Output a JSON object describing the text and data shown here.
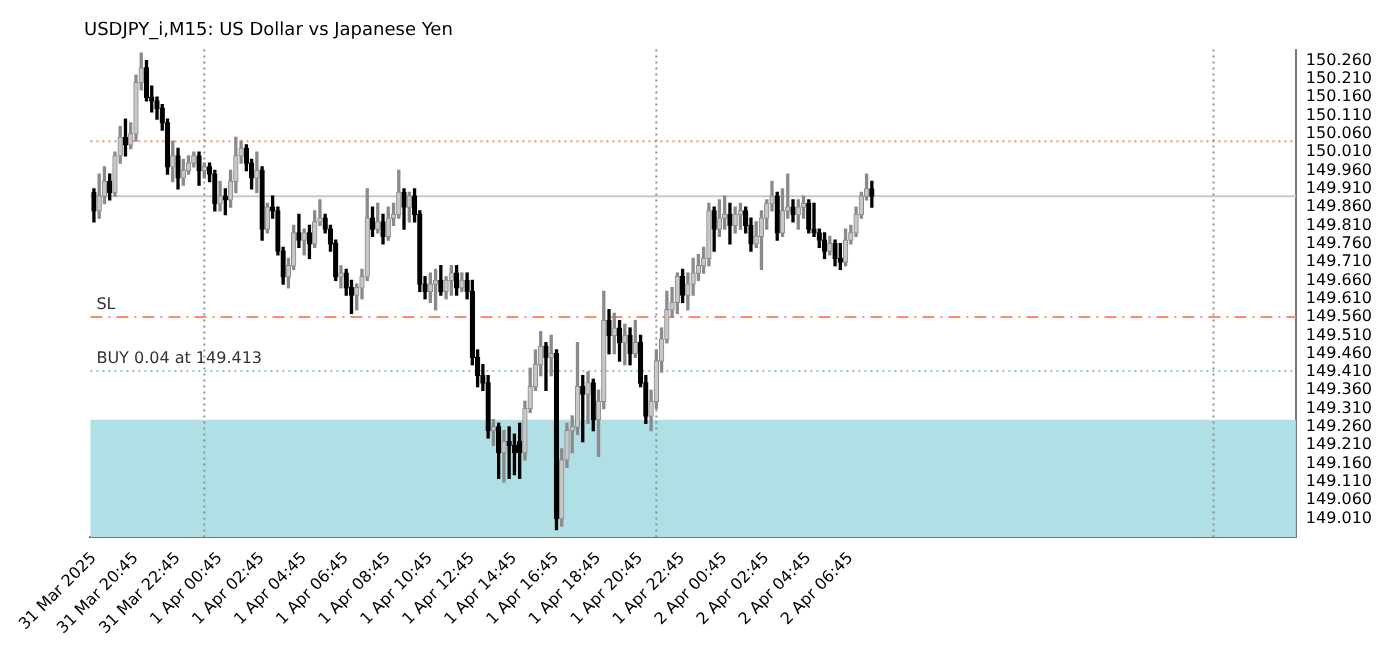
{
  "chart_data": {
    "type": "candlestick",
    "title": "USDJPY_i,M15: US Dollar vs Japanese Yen",
    "x": [
      "2025-03-31T18:45",
      "2025-03-31T19:00",
      "2025-03-31T19:15",
      "2025-03-31T19:30",
      "2025-03-31T19:45",
      "2025-03-31T20:00",
      "2025-03-31T20:15",
      "2025-03-31T20:30",
      "2025-03-31T20:45",
      "2025-03-31T21:00",
      "2025-03-31T21:15",
      "2025-03-31T21:30",
      "2025-03-31T21:45",
      "2025-03-31T22:00",
      "2025-03-31T22:15",
      "2025-03-31T22:30",
      "2025-03-31T22:45",
      "2025-03-31T23:00",
      "2025-03-31T23:15",
      "2025-03-31T23:30",
      "2025-03-31T23:45",
      "2025-04-01T00:00",
      "2025-04-01T00:15",
      "2025-04-01T00:30",
      "2025-04-01T00:45",
      "2025-04-01T01:00",
      "2025-04-01T01:15",
      "2025-04-01T01:30",
      "2025-04-01T01:45",
      "2025-04-01T02:00",
      "2025-04-01T02:15",
      "2025-04-01T02:30",
      "2025-04-01T02:45",
      "2025-04-01T03:00",
      "2025-04-01T03:15",
      "2025-04-01T03:30",
      "2025-04-01T03:45",
      "2025-04-01T04:00",
      "2025-04-01T04:15",
      "2025-04-01T04:30",
      "2025-04-01T04:45",
      "2025-04-01T05:00",
      "2025-04-01T05:15",
      "2025-04-01T05:30",
      "2025-04-01T05:45",
      "2025-04-01T06:00",
      "2025-04-01T06:15",
      "2025-04-01T06:30",
      "2025-04-01T06:45",
      "2025-04-01T07:00",
      "2025-04-01T07:15",
      "2025-04-01T07:30",
      "2025-04-01T07:45",
      "2025-04-01T08:00",
      "2025-04-01T08:15",
      "2025-04-01T08:30",
      "2025-04-01T08:45",
      "2025-04-01T09:00",
      "2025-04-01T09:15",
      "2025-04-01T09:30",
      "2025-04-01T09:45",
      "2025-04-01T10:00",
      "2025-04-01T10:15",
      "2025-04-01T10:30",
      "2025-04-01T10:45",
      "2025-04-01T11:00",
      "2025-04-01T11:15",
      "2025-04-01T11:30",
      "2025-04-01T11:45",
      "2025-04-01T12:00",
      "2025-04-01T12:15",
      "2025-04-01T12:30",
      "2025-04-01T12:45",
      "2025-04-01T13:00",
      "2025-04-01T13:15",
      "2025-04-01T13:30",
      "2025-04-01T13:45",
      "2025-04-01T14:00",
      "2025-04-01T14:15",
      "2025-04-01T14:30",
      "2025-04-01T14:45",
      "2025-04-01T15:00",
      "2025-04-01T15:15",
      "2025-04-01T15:30",
      "2025-04-01T15:45",
      "2025-04-01T16:00",
      "2025-04-01T16:15",
      "2025-04-01T16:30",
      "2025-04-01T16:45",
      "2025-04-01T17:00",
      "2025-04-01T17:15",
      "2025-04-01T17:30",
      "2025-04-01T17:45",
      "2025-04-01T18:00",
      "2025-04-01T18:15",
      "2025-04-01T18:30",
      "2025-04-01T18:45",
      "2025-04-01T19:00",
      "2025-04-01T19:15",
      "2025-04-01T19:30",
      "2025-04-01T19:45",
      "2025-04-01T20:00",
      "2025-04-01T20:15",
      "2025-04-01T20:30",
      "2025-04-01T20:45",
      "2025-04-01T21:00",
      "2025-04-01T21:15",
      "2025-04-01T21:30",
      "2025-04-01T21:45",
      "2025-04-01T22:00",
      "2025-04-01T22:15",
      "2025-04-01T22:30",
      "2025-04-01T22:45",
      "2025-04-01T23:00",
      "2025-04-01T23:15",
      "2025-04-01T23:30",
      "2025-04-01T23:45",
      "2025-04-02T00:00",
      "2025-04-02T00:15",
      "2025-04-02T00:30",
      "2025-04-02T00:45",
      "2025-04-02T01:00",
      "2025-04-02T01:15",
      "2025-04-02T01:30",
      "2025-04-02T01:45",
      "2025-04-02T02:00",
      "2025-04-02T02:15",
      "2025-04-02T02:30",
      "2025-04-02T02:45",
      "2025-04-02T03:00",
      "2025-04-02T03:15",
      "2025-04-02T03:30",
      "2025-04-02T03:45",
      "2025-04-02T04:00",
      "2025-04-02T04:15",
      "2025-04-02T04:30",
      "2025-04-02T04:45",
      "2025-04-02T05:00",
      "2025-04-02T05:15",
      "2025-04-02T05:30",
      "2025-04-02T05:45",
      "2025-04-02T06:00",
      "2025-04-02T06:15",
      "2025-04-02T06:30",
      "2025-04-02T06:45",
      "2025-04-02T07:00",
      "2025-04-02T07:15",
      "2025-04-02T07:30",
      "2025-04-02T07:45"
    ],
    "ohlc": [
      [
        149.9,
        149.91,
        149.82,
        149.85
      ],
      [
        149.85,
        149.95,
        149.83,
        149.89
      ],
      [
        149.89,
        149.97,
        149.87,
        149.93
      ],
      [
        149.93,
        149.95,
        149.88,
        149.9
      ],
      [
        149.9,
        150.01,
        149.89,
        150.0
      ],
      [
        150.0,
        150.08,
        149.98,
        150.05
      ],
      [
        150.05,
        150.1,
        150.0,
        150.03
      ],
      [
        150.03,
        150.09,
        150.02,
        150.06
      ],
      [
        150.06,
        150.22,
        150.04,
        150.2
      ],
      [
        150.2,
        150.28,
        150.18,
        150.24
      ],
      [
        150.24,
        150.26,
        150.15,
        150.16
      ],
      [
        150.16,
        150.19,
        150.12,
        150.15
      ],
      [
        150.15,
        150.16,
        150.1,
        150.13
      ],
      [
        150.13,
        150.14,
        150.07,
        150.09
      ],
      [
        150.09,
        150.1,
        149.95,
        149.97
      ],
      [
        149.97,
        150.04,
        149.93,
        150.0
      ],
      [
        150.0,
        150.02,
        149.91,
        149.94
      ],
      [
        149.94,
        149.99,
        149.92,
        149.96
      ],
      [
        149.96,
        150.0,
        149.95,
        149.98
      ],
      [
        149.98,
        150.01,
        149.97,
        150.0
      ],
      [
        150.0,
        150.01,
        149.92,
        149.96
      ],
      [
        149.96,
        149.98,
        149.94,
        149.97
      ],
      [
        149.97,
        149.98,
        149.93,
        149.95
      ],
      [
        149.95,
        149.96,
        149.85,
        149.87
      ],
      [
        149.87,
        149.93,
        149.85,
        149.89
      ],
      [
        149.89,
        149.91,
        149.84,
        149.88
      ],
      [
        149.88,
        149.96,
        149.86,
        149.93
      ],
      [
        149.93,
        150.05,
        149.9,
        150.0
      ],
      [
        150.0,
        150.04,
        149.98,
        150.02
      ],
      [
        150.02,
        150.03,
        149.96,
        149.98
      ],
      [
        149.98,
        149.99,
        149.91,
        149.94
      ],
      [
        149.94,
        150.01,
        149.9,
        149.96
      ],
      [
        149.96,
        149.97,
        149.77,
        149.8
      ],
      [
        149.8,
        149.87,
        149.79,
        149.86
      ],
      [
        149.86,
        149.89,
        149.83,
        149.85
      ],
      [
        149.85,
        149.86,
        149.73,
        149.74
      ],
      [
        149.74,
        149.75,
        149.65,
        149.67
      ],
      [
        149.67,
        149.72,
        149.64,
        149.7
      ],
      [
        149.7,
        149.81,
        149.69,
        149.79
      ],
      [
        149.79,
        149.84,
        149.75,
        149.77
      ],
      [
        149.77,
        149.8,
        149.73,
        149.79
      ],
      [
        149.79,
        149.81,
        149.72,
        149.76
      ],
      [
        149.76,
        149.85,
        149.75,
        149.82
      ],
      [
        149.82,
        149.88,
        149.81,
        149.83
      ],
      [
        149.83,
        149.84,
        149.79,
        149.8
      ],
      [
        149.8,
        149.81,
        149.74,
        149.76
      ],
      [
        149.76,
        149.77,
        149.66,
        149.67
      ],
      [
        149.67,
        149.7,
        149.64,
        149.68
      ],
      [
        149.68,
        149.69,
        149.62,
        149.64
      ],
      [
        149.64,
        149.66,
        149.57,
        149.62
      ],
      [
        149.62,
        149.65,
        149.58,
        149.64
      ],
      [
        149.64,
        149.69,
        149.61,
        149.67
      ],
      [
        149.67,
        149.91,
        149.66,
        149.83
      ],
      [
        149.83,
        149.86,
        149.78,
        149.8
      ],
      [
        149.8,
        149.87,
        149.79,
        149.82
      ],
      [
        149.82,
        149.84,
        149.76,
        149.78
      ],
      [
        149.78,
        149.86,
        149.77,
        149.83
      ],
      [
        149.83,
        149.87,
        149.81,
        149.84
      ],
      [
        149.84,
        149.96,
        149.83,
        149.9
      ],
      [
        149.9,
        149.91,
        149.8,
        149.86
      ],
      [
        149.86,
        149.9,
        149.82,
        149.89
      ],
      [
        149.89,
        149.91,
        149.82,
        149.84
      ],
      [
        149.84,
        149.85,
        149.63,
        149.65
      ],
      [
        149.65,
        149.67,
        149.61,
        149.63
      ],
      [
        149.63,
        149.68,
        149.6,
        149.65
      ],
      [
        149.65,
        149.69,
        149.58,
        149.66
      ],
      [
        149.66,
        149.7,
        149.62,
        149.63
      ],
      [
        149.63,
        149.67,
        149.61,
        149.66
      ],
      [
        149.66,
        149.7,
        149.62,
        149.68
      ],
      [
        149.68,
        149.7,
        149.62,
        149.64
      ],
      [
        149.64,
        149.68,
        149.63,
        149.66
      ],
      [
        149.66,
        149.68,
        149.61,
        149.63
      ],
      [
        149.63,
        149.66,
        149.43,
        149.45
      ],
      [
        149.45,
        149.47,
        149.37,
        149.4
      ],
      [
        149.4,
        149.43,
        149.36,
        149.38
      ],
      [
        149.38,
        149.4,
        149.23,
        149.25
      ],
      [
        149.25,
        149.28,
        149.21,
        149.26
      ],
      [
        149.26,
        149.27,
        149.12,
        149.19
      ],
      [
        149.19,
        149.25,
        149.11,
        149.22
      ],
      [
        149.22,
        149.26,
        149.12,
        149.21
      ],
      [
        149.21,
        149.24,
        149.13,
        149.19
      ],
      [
        149.22,
        149.27,
        149.12,
        149.19
      ],
      [
        149.19,
        149.33,
        149.17,
        149.31
      ],
      [
        149.31,
        149.42,
        149.3,
        149.37
      ],
      [
        149.37,
        149.47,
        149.36,
        149.43
      ],
      [
        149.43,
        149.52,
        149.4,
        149.48
      ],
      [
        149.48,
        149.49,
        149.36,
        149.45
      ],
      [
        149.45,
        149.51,
        149.4,
        149.46
      ],
      [
        149.46,
        149.47,
        148.98,
        149.01
      ],
      [
        149.01,
        149.2,
        148.99,
        149.17
      ],
      [
        149.17,
        149.27,
        149.15,
        149.25
      ],
      [
        149.25,
        149.29,
        149.19,
        149.26
      ],
      [
        149.26,
        149.49,
        149.24,
        149.37
      ],
      [
        149.37,
        149.4,
        149.22,
        149.35
      ],
      [
        149.35,
        149.41,
        149.27,
        149.38
      ],
      [
        149.38,
        149.39,
        149.25,
        149.28
      ],
      [
        149.28,
        149.36,
        149.18,
        149.33
      ],
      [
        149.33,
        149.63,
        149.31,
        149.55
      ],
      [
        149.55,
        149.58,
        149.46,
        149.51
      ],
      [
        149.51,
        149.57,
        149.46,
        149.53
      ],
      [
        149.53,
        149.55,
        149.44,
        149.49
      ],
      [
        149.49,
        149.54,
        149.43,
        149.51
      ],
      [
        149.51,
        149.53,
        149.43,
        149.46
      ],
      [
        149.46,
        149.55,
        149.45,
        149.49
      ],
      [
        149.49,
        149.51,
        149.37,
        149.38
      ],
      [
        149.38,
        149.4,
        149.27,
        149.29
      ],
      [
        149.29,
        149.36,
        149.25,
        149.33
      ],
      [
        149.33,
        149.47,
        149.31,
        149.44
      ],
      [
        149.44,
        149.53,
        149.41,
        149.5
      ],
      [
        149.5,
        149.63,
        149.49,
        149.58
      ],
      [
        149.58,
        149.64,
        149.56,
        149.6
      ],
      [
        149.6,
        149.68,
        149.57,
        149.67
      ],
      [
        149.67,
        149.69,
        149.6,
        149.62
      ],
      [
        149.62,
        149.68,
        149.58,
        149.65
      ],
      [
        149.65,
        149.72,
        149.62,
        149.68
      ],
      [
        149.68,
        149.73,
        149.66,
        149.7
      ],
      [
        149.7,
        149.75,
        149.68,
        149.72
      ],
      [
        149.72,
        149.87,
        149.7,
        149.85
      ],
      [
        149.85,
        149.86,
        149.74,
        149.8
      ],
      [
        149.8,
        149.88,
        149.78,
        149.83
      ],
      [
        149.83,
        149.89,
        149.8,
        149.84
      ],
      [
        149.84,
        149.87,
        149.76,
        149.81
      ],
      [
        149.81,
        149.86,
        149.79,
        149.84
      ],
      [
        149.84,
        149.87,
        149.8,
        149.85
      ],
      [
        149.85,
        149.86,
        149.79,
        149.81
      ],
      [
        149.81,
        149.83,
        149.74,
        149.76
      ],
      [
        149.76,
        149.82,
        149.75,
        149.78
      ],
      [
        149.78,
        149.85,
        149.69,
        149.83
      ],
      [
        149.83,
        149.88,
        149.8,
        149.87
      ],
      [
        149.87,
        149.93,
        149.85,
        149.89
      ],
      [
        149.89,
        149.9,
        149.77,
        149.79
      ],
      [
        149.79,
        149.91,
        149.78,
        149.85
      ],
      [
        149.85,
        149.95,
        149.83,
        149.86
      ],
      [
        149.86,
        149.88,
        149.82,
        149.84
      ],
      [
        149.84,
        149.88,
        149.8,
        149.86
      ],
      [
        149.86,
        149.89,
        149.83,
        149.87
      ],
      [
        149.87,
        149.88,
        149.79,
        149.8
      ],
      [
        149.8,
        149.87,
        149.78,
        149.79
      ],
      [
        149.79,
        149.8,
        149.75,
        149.77
      ],
      [
        149.77,
        149.79,
        149.72,
        149.74
      ],
      [
        149.74,
        149.78,
        149.73,
        149.76
      ],
      [
        149.76,
        149.77,
        149.7,
        149.72
      ],
      [
        149.72,
        149.76,
        149.69,
        149.71
      ],
      [
        149.71,
        149.8,
        149.7,
        149.77
      ],
      [
        149.77,
        149.81,
        149.76,
        149.79
      ],
      [
        149.79,
        149.86,
        149.78,
        149.84
      ],
      [
        149.84,
        149.9,
        149.83,
        149.89
      ],
      [
        149.89,
        149.95,
        149.88,
        149.91
      ],
      [
        149.91,
        149.93,
        149.86,
        149.89
      ]
    ],
    "xlim": [
      "2025-03-31T18:35",
      "2025-04-03T03:55"
    ],
    "xticks": [
      {
        "value": "2025-03-31T18:45",
        "label": "31 Mar 2025"
      },
      {
        "value": "2025-03-31T20:45",
        "label": "31 Mar 20:45"
      },
      {
        "value": "2025-03-31T22:45",
        "label": "31 Mar 22:45"
      },
      {
        "value": "2025-04-01T00:45",
        "label": "1 Apr 00:45"
      },
      {
        "value": "2025-04-01T02:45",
        "label": "1 Apr 02:45"
      },
      {
        "value": "2025-04-01T04:45",
        "label": "1 Apr 04:45"
      },
      {
        "value": "2025-04-01T06:45",
        "label": "1 Apr 06:45"
      },
      {
        "value": "2025-04-01T08:45",
        "label": "1 Apr 08:45"
      },
      {
        "value": "2025-04-01T10:45",
        "label": "1 Apr 10:45"
      },
      {
        "value": "2025-04-01T12:45",
        "label": "1 Apr 12:45"
      },
      {
        "value": "2025-04-01T14:45",
        "label": "1 Apr 14:45"
      },
      {
        "value": "2025-04-01T16:45",
        "label": "1 Apr 16:45"
      },
      {
        "value": "2025-04-01T18:45",
        "label": "1 Apr 18:45"
      },
      {
        "value": "2025-04-01T20:45",
        "label": "1 Apr 20:45"
      },
      {
        "value": "2025-04-01T22:45",
        "label": "1 Apr 22:45"
      },
      {
        "value": "2025-04-02T00:45",
        "label": "2 Apr 00:45"
      },
      {
        "value": "2025-04-02T02:45",
        "label": "2 Apr 02:45"
      },
      {
        "value": "2025-04-02T04:45",
        "label": "2 Apr 04:45"
      },
      {
        "value": "2025-04-02T06:45",
        "label": "2 Apr 06:45"
      }
    ],
    "ylim": [
      148.96,
      150.29
    ],
    "yticks": [
      {
        "value": 149.01,
        "label": "149.010"
      },
      {
        "value": 149.06,
        "label": "149.060"
      },
      {
        "value": 149.11,
        "label": "149.110"
      },
      {
        "value": 149.16,
        "label": "149.160"
      },
      {
        "value": 149.21,
        "label": "149.210"
      },
      {
        "value": 149.26,
        "label": "149.260"
      },
      {
        "value": 149.31,
        "label": "149.310"
      },
      {
        "value": 149.36,
        "label": "149.360"
      },
      {
        "value": 149.41,
        "label": "149.410"
      },
      {
        "value": 149.46,
        "label": "149.460"
      },
      {
        "value": 149.51,
        "label": "149.510"
      },
      {
        "value": 149.56,
        "label": "149.560"
      },
      {
        "value": 149.61,
        "label": "149.610"
      },
      {
        "value": 149.66,
        "label": "149.660"
      },
      {
        "value": 149.71,
        "label": "149.710"
      },
      {
        "value": 149.76,
        "label": "149.760"
      },
      {
        "value": 149.81,
        "label": "149.810"
      },
      {
        "value": 149.86,
        "label": "149.860"
      },
      {
        "value": 149.91,
        "label": "149.910"
      },
      {
        "value": 149.96,
        "label": "149.960"
      },
      {
        "value": 150.01,
        "label": "150.010"
      },
      {
        "value": 150.06,
        "label": "150.060"
      },
      {
        "value": 150.11,
        "label": "150.110"
      },
      {
        "value": 150.16,
        "label": "150.160"
      },
      {
        "value": 150.21,
        "label": "150.210"
      },
      {
        "value": 150.26,
        "label": "150.260"
      }
    ],
    "bands": [
      {
        "axis": "y",
        "from": 148.96,
        "to": 149.28,
        "color": "#b0e0e6"
      }
    ],
    "ref_lines": [
      {
        "axis": "y",
        "value": 149.56,
        "label": "SL",
        "color": "#ff8c69",
        "line_style": "dashed"
      },
      {
        "axis": "y",
        "value": 149.413,
        "label": "BUY 0.04 at 149.413",
        "color": "#8fd18f",
        "line_style": "dotted"
      },
      {
        "axis": "y",
        "value": 149.89,
        "color": "#c8c8c8",
        "line_style": "solid"
      },
      {
        "axis": "y",
        "value": 150.04,
        "color": "#ff8c69",
        "line_style": "dotted"
      },
      {
        "axis": "x",
        "value": "2025-04-01T00:00",
        "color": "#909090",
        "line_style": "dotted"
      },
      {
        "axis": "x",
        "value": "2025-04-01T21:30",
        "color": "#909090",
        "line_style": "dotted"
      },
      {
        "axis": "x",
        "value": "2025-04-03T00:00",
        "color": "#909090",
        "line_style": "dotted"
      }
    ]
  }
}
